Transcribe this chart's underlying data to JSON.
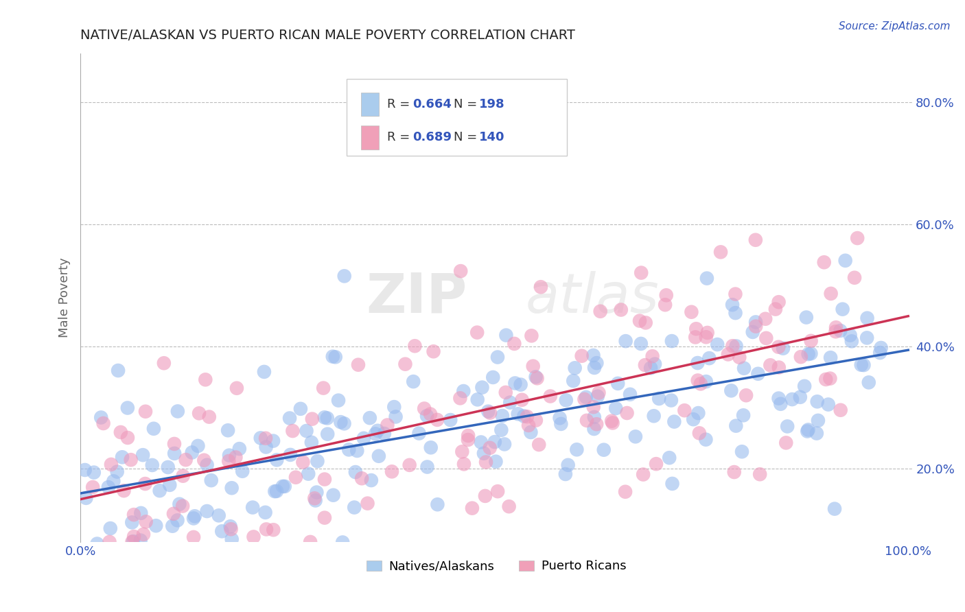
{
  "title": "NATIVE/ALASKAN VS PUERTO RICAN MALE POVERTY CORRELATION CHART",
  "source": "Source: ZipAtlas.com",
  "ylabel": "Male Poverty",
  "yticks": [
    "20.0%",
    "40.0%",
    "60.0%",
    "80.0%"
  ],
  "ytick_vals": [
    0.2,
    0.4,
    0.6,
    0.8
  ],
  "legend_blue_label": "Natives/Alaskans",
  "legend_pink_label": "Puerto Ricans",
  "blue_color": "#aacced",
  "blue_line_color": "#3366bb",
  "pink_color": "#f0a0b8",
  "pink_line_color": "#cc3355",
  "blue_marker_color": "#99bbee",
  "pink_marker_color": "#ee99bb",
  "title_color": "#222222",
  "source_color": "#3355bb",
  "axis_color": "#3355bb",
  "watermark_zip": "ZIP",
  "watermark_atlas": "atlas",
  "background_color": "#ffffff",
  "grid_color": "#bbbbbb",
  "blue_R": 0.664,
  "blue_N": 198,
  "pink_R": 0.689,
  "pink_N": 140,
  "xmin": 0.0,
  "xmax": 1.0,
  "ymin": 0.08,
  "ymax": 0.88,
  "blue_intercept": 0.145,
  "blue_slope": 0.255,
  "pink_intercept": 0.148,
  "pink_slope": 0.295
}
